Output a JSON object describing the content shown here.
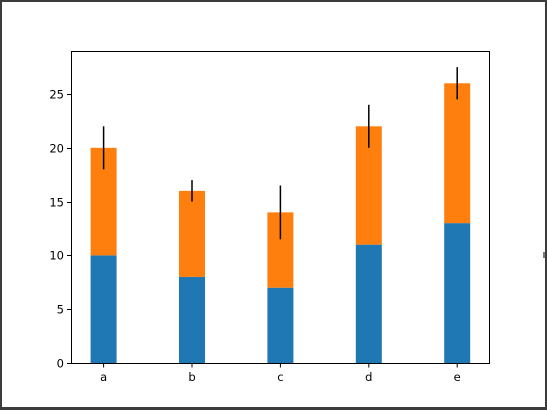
{
  "chart_data": {
    "type": "bar",
    "stacked": true,
    "categories": [
      "a",
      "b",
      "c",
      "d",
      "e"
    ],
    "series": [
      {
        "values": [
          10,
          8,
          7,
          11,
          13
        ],
        "color": "#1f77b4"
      },
      {
        "values": [
          10,
          8,
          7,
          11,
          13
        ],
        "color": "#ff7f0e"
      }
    ],
    "error_bars": [
      2,
      1,
      2.5,
      2,
      1.5
    ],
    "error_bar_color": "#000000",
    "ylim": [
      0,
      29
    ],
    "yticks": [
      0,
      5,
      10,
      15,
      20,
      25
    ],
    "title": "",
    "xlabel": "",
    "ylabel": "",
    "grid": false
  }
}
